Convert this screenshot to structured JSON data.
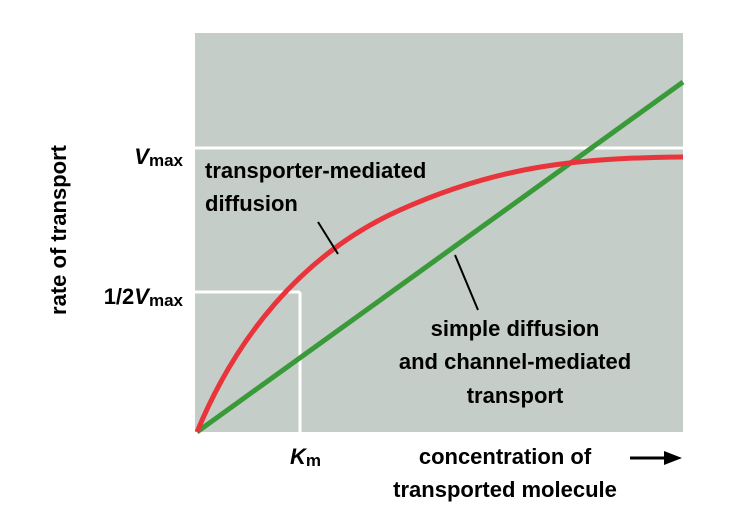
{
  "y_axis_label": "rate of transport",
  "x_axis_label": [
    "concentration of",
    "transported molecule"
  ],
  "vmax": {
    "symbol": "V",
    "subscript": "max"
  },
  "half_vmax": {
    "prefix": "1/2",
    "symbol": "V",
    "subscript": "max"
  },
  "km": {
    "symbol": "K",
    "subscript": "m"
  },
  "curve_labels": {
    "transporter": [
      "transporter-mediated",
      "diffusion"
    ],
    "simple": [
      "simple diffusion",
      "and channel-mediated",
      "transport"
    ]
  }
}
